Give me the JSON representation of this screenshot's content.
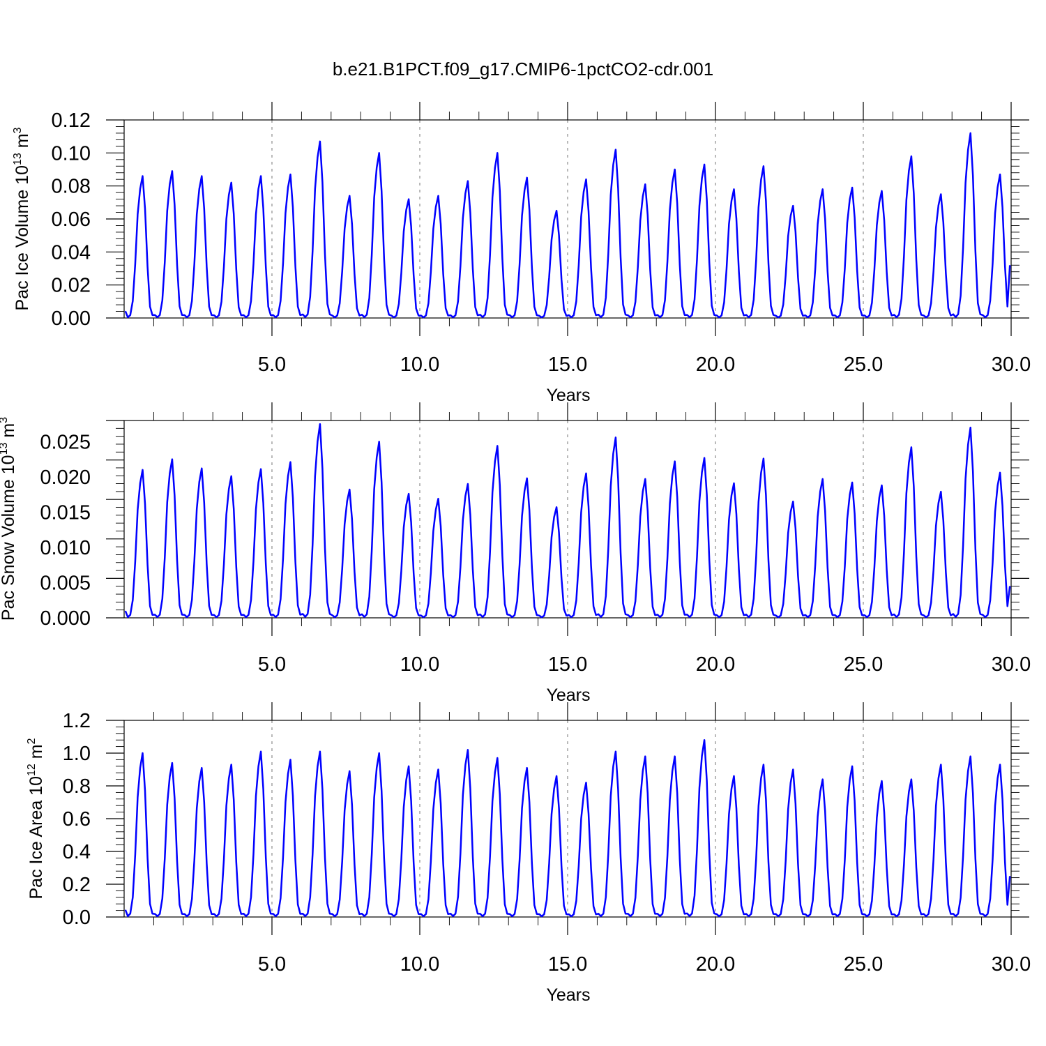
{
  "title": "b.e21.B1PCT.f09_g17.CMIP6-1pctCO2-cdr.001",
  "colors": {
    "series": "#0000ff",
    "reference_lines": "#808080"
  },
  "chart_data": [
    {
      "type": "line",
      "title": "b.e21.B1PCT.f09_g17.CMIP6-1pctCO2-cdr.001",
      "xlabel": "Years",
      "ylabel_parts": [
        "Pac Ice Volume 10",
        "13",
        " m",
        "3"
      ],
      "xlim": [
        0.0,
        30.0
      ],
      "ylim": [
        0.0,
        0.12
      ],
      "xticks": [
        5.0,
        10.0,
        15.0,
        20.0,
        25.0,
        30.0
      ],
      "xtick_labels": [
        "5.0",
        "10.0",
        "15.0",
        "20.0",
        "25.0",
        "30.0"
      ],
      "yticks": [
        0.0,
        0.02,
        0.04,
        0.06,
        0.08,
        0.1,
        0.12
      ],
      "ytick_labels": [
        "0.00",
        "0.02",
        "0.04",
        "0.06",
        "0.08",
        "0.10",
        "0.12"
      ],
      "reference_lines_x": [
        5,
        10,
        15,
        20,
        25
      ],
      "grid": false,
      "monthly_series": true,
      "peaks": [
        0.086,
        0.089,
        0.086,
        0.082,
        0.086,
        0.087,
        0.107,
        0.074,
        0.1,
        0.072,
        0.074,
        0.083,
        0.1,
        0.085,
        0.065,
        0.084,
        0.102,
        0.081,
        0.09,
        0.093,
        0.078,
        0.092,
        0.068,
        0.078,
        0.079,
        0.077,
        0.098,
        0.075,
        0.112,
        0.087
      ],
      "final_value": 0.032
    },
    {
      "type": "line",
      "title": "",
      "xlabel": "Years",
      "ylabel_parts": [
        "Pac Snow Volume 10",
        "13",
        " m",
        "3"
      ],
      "xlim": [
        0.0,
        30.0
      ],
      "ylim": [
        0.0,
        0.028
      ],
      "xticks": [
        5.0,
        10.0,
        15.0,
        20.0,
        25.0,
        30.0
      ],
      "xtick_labels": [
        "5.0",
        "10.0",
        "15.0",
        "20.0",
        "25.0",
        "30.0"
      ],
      "yticks": [
        0.0,
        0.005,
        0.01,
        0.015,
        0.02,
        0.025
      ],
      "ytick_labels": [
        "0.000",
        "0.005",
        "0.010",
        "0.015",
        "0.020",
        "0.025"
      ],
      "reference_lines_x": [
        5,
        10,
        15,
        20,
        25
      ],
      "grid": false,
      "monthly_series": true,
      "peaks": [
        0.021,
        0.0225,
        0.0212,
        0.0201,
        0.0211,
        0.0221,
        0.0275,
        0.0182,
        0.025,
        0.0176,
        0.0169,
        0.019,
        0.0244,
        0.0198,
        0.0157,
        0.0205,
        0.0256,
        0.0197,
        0.0222,
        0.0227,
        0.0191,
        0.0226,
        0.0165,
        0.0197,
        0.0192,
        0.0188,
        0.0242,
        0.0179,
        0.027,
        0.0206
      ],
      "final_value": 0.0045
    },
    {
      "type": "line",
      "title": "",
      "xlabel": "Years",
      "ylabel_parts": [
        "Pac Ice Area 10",
        "12",
        " m",
        "2"
      ],
      "xlim": [
        0.0,
        30.0
      ],
      "ylim": [
        0.0,
        1.2
      ],
      "xticks": [
        5.0,
        10.0,
        15.0,
        20.0,
        25.0,
        30.0
      ],
      "xtick_labels": [
        "5.0",
        "10.0",
        "15.0",
        "20.0",
        "25.0",
        "30.0"
      ],
      "yticks": [
        0.0,
        0.2,
        0.4,
        0.6,
        0.8,
        1.0,
        1.2
      ],
      "ytick_labels": [
        "0.0",
        "0.2",
        "0.4",
        "0.6",
        "0.8",
        "1.0",
        "1.2"
      ],
      "reference_lines_x": [
        5,
        10,
        15,
        20,
        25
      ],
      "grid": false,
      "monthly_series": true,
      "peaks": [
        1.0,
        0.94,
        0.91,
        0.93,
        1.01,
        0.96,
        1.01,
        0.89,
        1.0,
        0.92,
        0.9,
        1.02,
        0.97,
        0.91,
        0.86,
        0.82,
        1.01,
        0.98,
        0.98,
        1.08,
        0.86,
        0.93,
        0.9,
        0.84,
        0.92,
        0.83,
        0.84,
        0.93,
        0.98,
        0.93
      ],
      "final_value": 0.25
    }
  ]
}
